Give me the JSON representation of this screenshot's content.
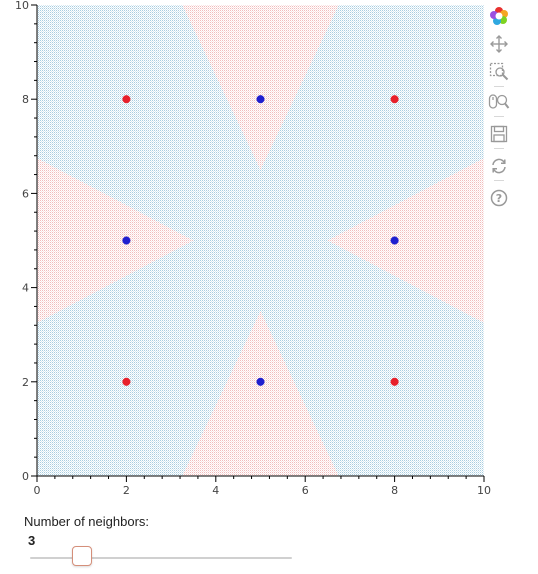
{
  "chart_data": {
    "type": "scatter",
    "title": "",
    "xlabel": "",
    "ylabel": "",
    "xlim": [
      0,
      10
    ],
    "ylim": [
      0,
      10
    ],
    "x_ticks": [
      "0",
      "2",
      "4",
      "6",
      "8",
      "10"
    ],
    "y_ticks": [
      "0",
      "2",
      "4",
      "6",
      "8",
      "10"
    ],
    "background": "decision regions (blue / red)",
    "region_colors": {
      "blue": "#c8e2ee",
      "red": "#f8d9d9"
    },
    "point_colors": {
      "red": "#e8202a",
      "blue": "#1f1fcf"
    },
    "series": [
      {
        "color": "red",
        "points": [
          [
            2,
            8
          ],
          [
            8,
            8
          ],
          [
            2,
            2
          ],
          [
            8,
            2
          ]
        ]
      },
      {
        "color": "blue",
        "points": [
          [
            5,
            8
          ],
          [
            2,
            5
          ],
          [
            8,
            5
          ],
          [
            5,
            2
          ]
        ]
      }
    ]
  },
  "toolbar": {
    "tools": [
      {
        "name": "bokeh-logo-icon"
      },
      {
        "name": "pan-icon"
      },
      {
        "name": "box-zoom-icon"
      },
      {
        "name": "wheel-zoom-icon"
      },
      {
        "name": "save-icon"
      },
      {
        "name": "reset-icon"
      },
      {
        "name": "help-icon"
      }
    ]
  },
  "slider": {
    "title": "Number of neighbors:",
    "value": "3",
    "value_fraction": 0.2
  }
}
